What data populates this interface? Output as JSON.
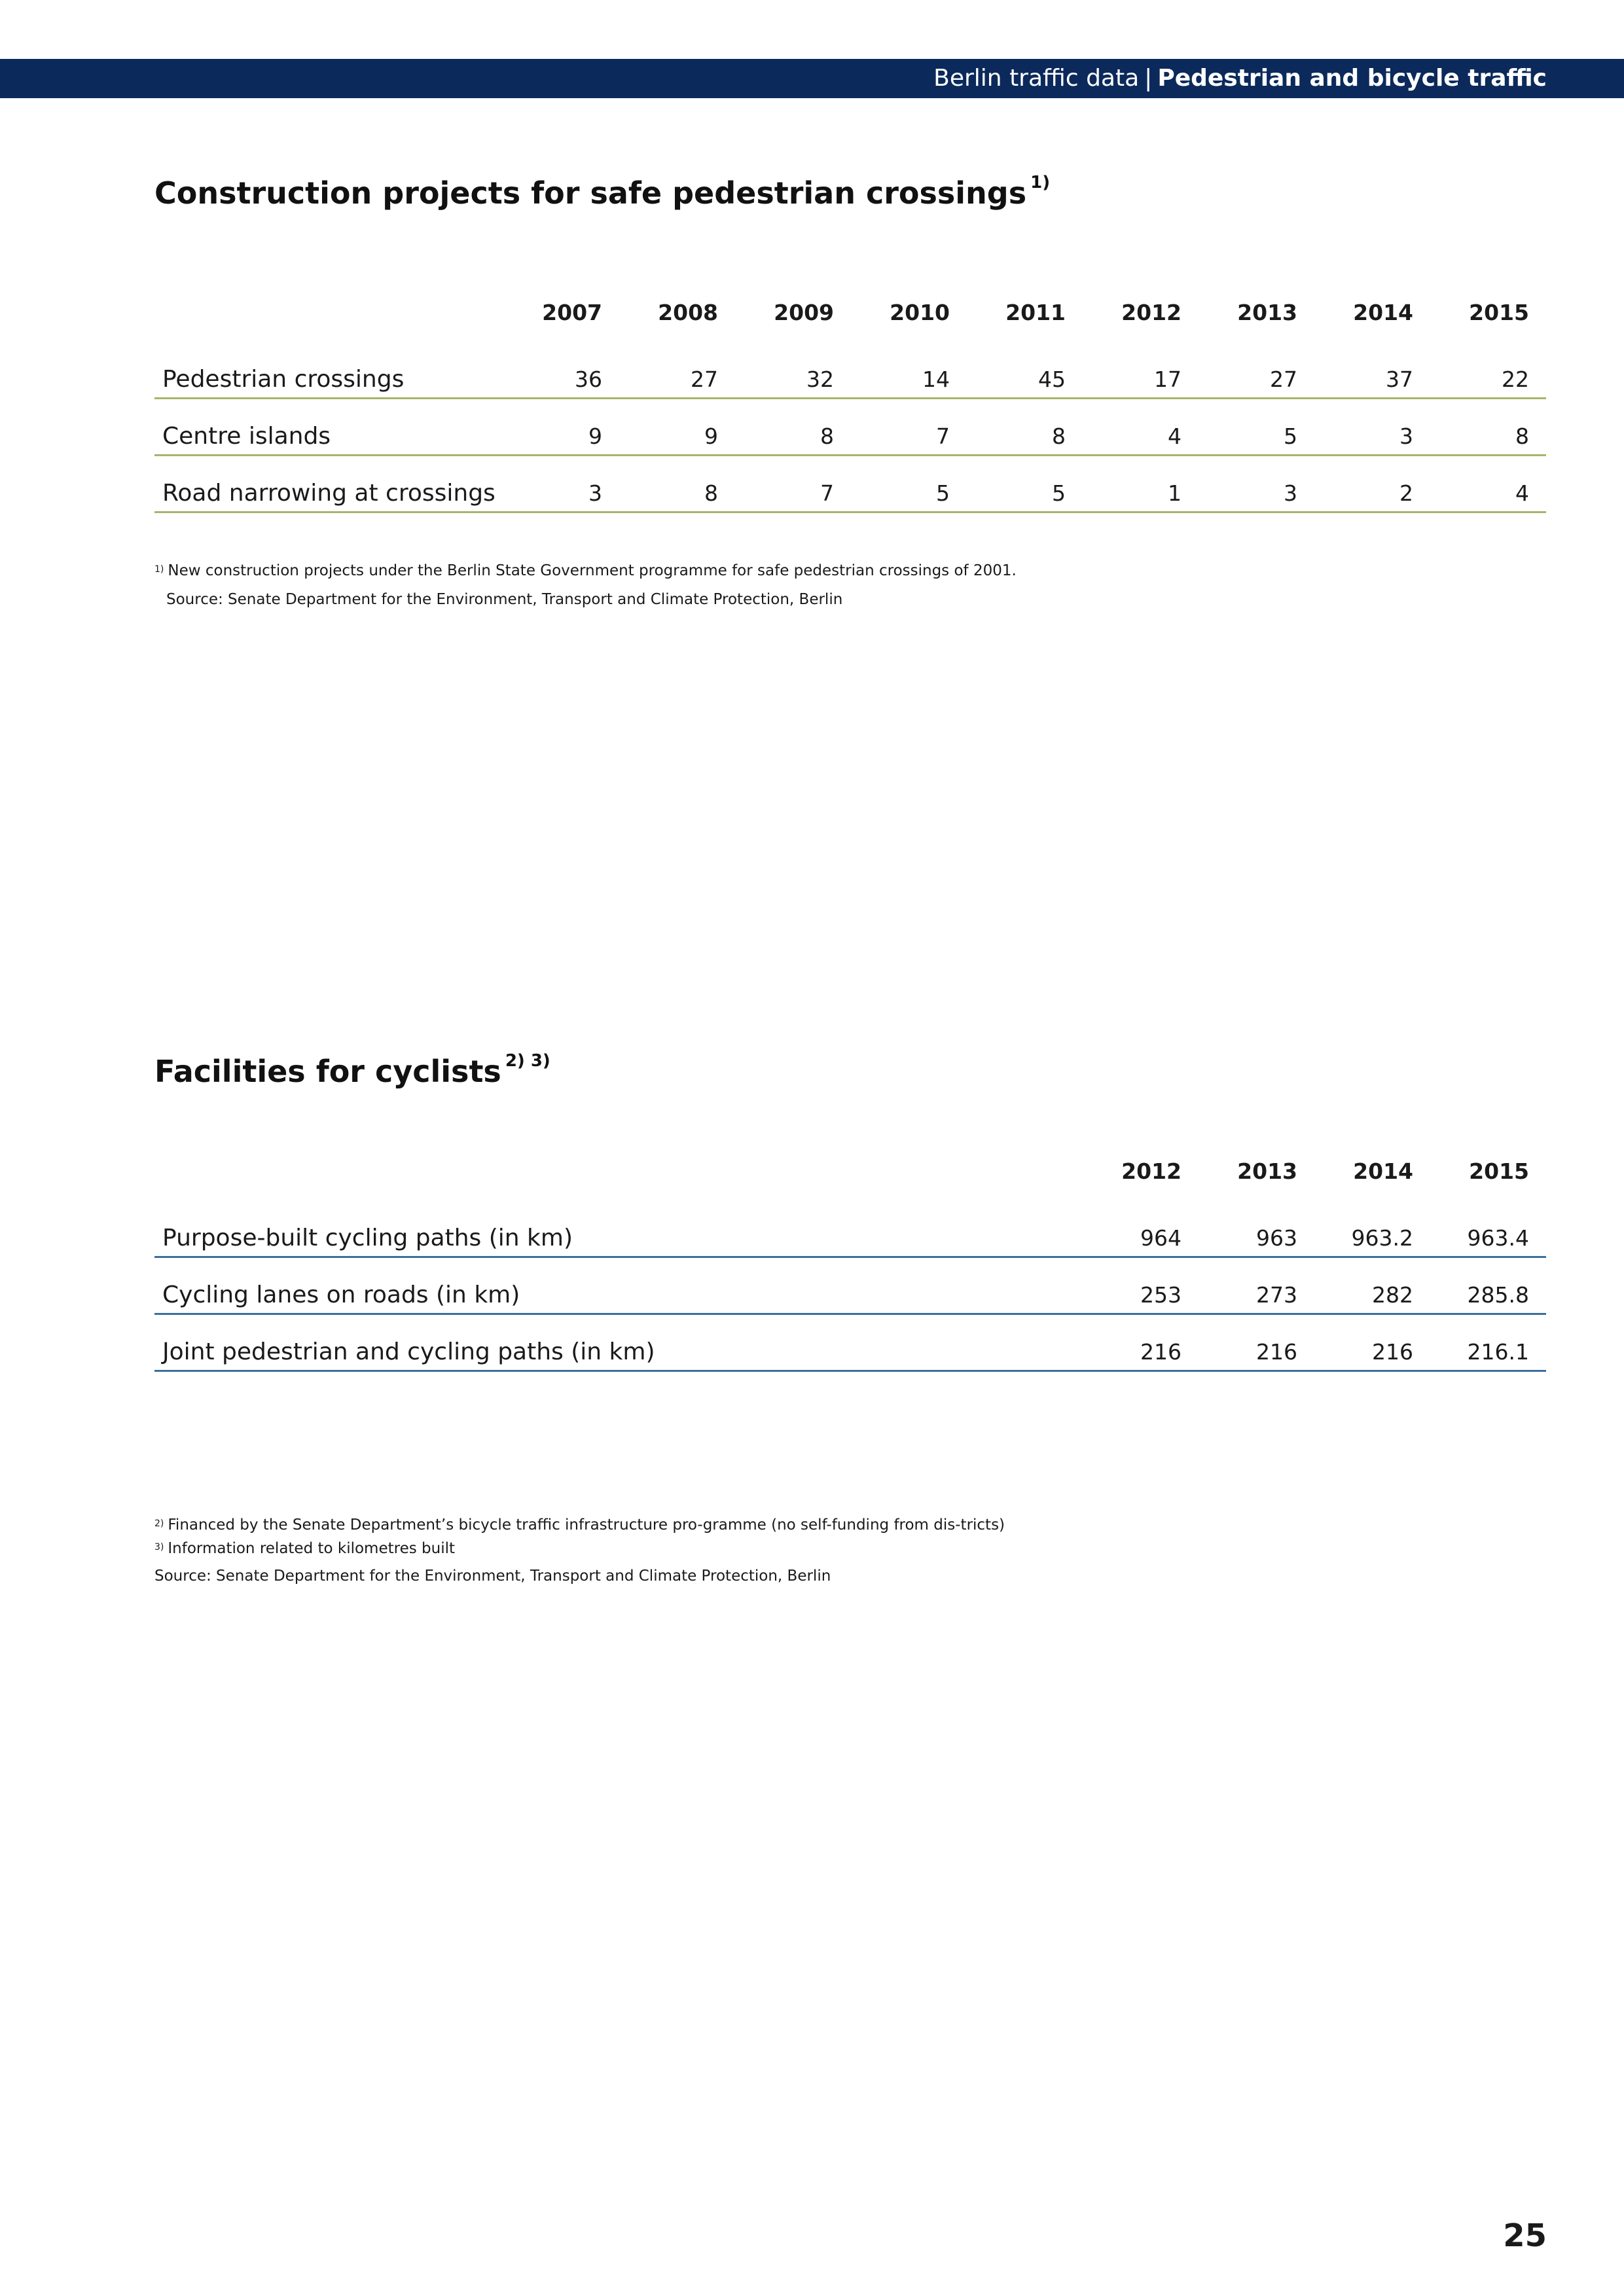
{
  "header": {
    "section": "Berlin traffic data",
    "separator": "|",
    "chapter": "Pedestrian and bicycle traffic"
  },
  "pedestrian_table": {
    "title": "Construction projects for safe pedestrian crossings",
    "title_sup": "1)",
    "years": [
      "2007",
      "2008",
      "2009",
      "2010",
      "2011",
      "2012",
      "2013",
      "2014",
      "2015"
    ],
    "rows": [
      {
        "label": "Pedestrian crossings",
        "values": [
          "36",
          "27",
          "32",
          "14",
          "45",
          "17",
          "27",
          "37",
          "22"
        ]
      },
      {
        "label": "Centre islands",
        "values": [
          "9",
          "9",
          "8",
          "7",
          "8",
          "4",
          "5",
          "3",
          "8"
        ]
      },
      {
        "label": "Road narrowing at crossings",
        "values": [
          "3",
          "8",
          "7",
          "5",
          "5",
          "1",
          "3",
          "2",
          "4"
        ]
      }
    ],
    "footnotes": [
      {
        "sup": "1)",
        "text": "New construction projects under the Berlin State Government programme for safe pedestrian crossings of 2001."
      }
    ],
    "source": "Source: Senate Department for the Environment, Transport and Climate Protection, Berlin"
  },
  "cyclist_table": {
    "title": "Facilities for cyclists",
    "title_sup": "2) 3)",
    "years": [
      "2012",
      "2013",
      "2014",
      "2015"
    ],
    "rows": [
      {
        "label": "Purpose-built cycling paths (in km)",
        "values": [
          "964",
          "963",
          "963.2",
          "963.4"
        ]
      },
      {
        "label": "Cycling lanes on roads (in km)",
        "values": [
          "253",
          "273",
          "282",
          "285.8"
        ]
      },
      {
        "label": "Joint pedestrian and cycling paths (in km)",
        "values": [
          "216",
          "216",
          "216",
          "216.1"
        ]
      }
    ],
    "footnotes": [
      {
        "sup": "2)",
        "text": "Financed by the Senate Department’s bicycle traffic infrastructure pro-gramme (no self-funding from dis-tricts)"
      },
      {
        "sup": "3)",
        "text": "Information related to kilometres built"
      }
    ],
    "source": "Source: Senate Department for the Environment, Transport and Climate Protection, Berlin"
  },
  "page_number": "25",
  "colors": {
    "header_band": "#0b2a5b",
    "pedestrian_rule": "#a8b46a",
    "cyclist_rule": "#3d6f9e"
  }
}
